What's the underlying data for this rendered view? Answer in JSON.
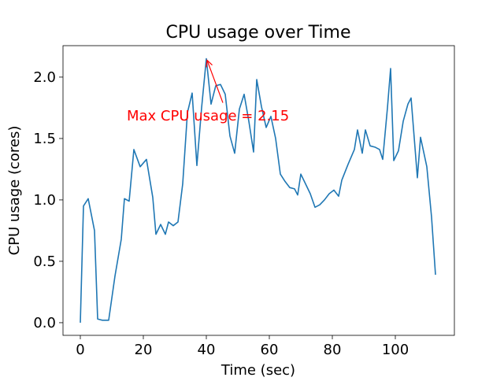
{
  "chart_data": {
    "type": "line",
    "title": "CPU usage over Time",
    "xlabel": "Time (sec)",
    "ylabel": "CPU usage (cores)",
    "annotation": "Max CPU usage = 2.15",
    "annotation_color": "#ff0000",
    "x": [
      0,
      1,
      2.5,
      4.5,
      5.5,
      7,
      9,
      11,
      13,
      14,
      15.5,
      17,
      19,
      21,
      23,
      24,
      25.5,
      27,
      28,
      29.5,
      31,
      32.5,
      34,
      35.5,
      37,
      38.5,
      40,
      41.5,
      43,
      44.5,
      46,
      47.5,
      49,
      50.5,
      52,
      53.5,
      55,
      56,
      57.5,
      59,
      60.5,
      62,
      63.5,
      65,
      66.5,
      68,
      69,
      70,
      71.5,
      73,
      74.5,
      76,
      77.5,
      79,
      80.5,
      82,
      83,
      85,
      87,
      88,
      89.5,
      90.5,
      92,
      93.5,
      95,
      96,
      97.5,
      98.5,
      99.5,
      101,
      102.5,
      104,
      105,
      107,
      108,
      110,
      111.5,
      112.75
    ],
    "series": [
      {
        "name": "CPU usage",
        "color": "#1f77b4",
        "values": [
          0.0,
          0.95,
          1.01,
          0.75,
          0.03,
          0.02,
          0.02,
          0.38,
          0.68,
          1.01,
          0.99,
          1.41,
          1.27,
          1.33,
          1.02,
          0.72,
          0.8,
          0.72,
          0.82,
          0.79,
          0.82,
          1.13,
          1.71,
          1.87,
          1.28,
          1.75,
          2.15,
          1.78,
          1.93,
          1.94,
          1.86,
          1.52,
          1.38,
          1.74,
          1.86,
          1.64,
          1.39,
          1.98,
          1.76,
          1.59,
          1.68,
          1.5,
          1.21,
          1.15,
          1.1,
          1.09,
          1.04,
          1.21,
          1.13,
          1.05,
          0.94,
          0.96,
          1.0,
          1.05,
          1.08,
          1.03,
          1.16,
          1.29,
          1.41,
          1.57,
          1.38,
          1.57,
          1.44,
          1.43,
          1.41,
          1.33,
          1.75,
          2.07,
          1.32,
          1.4,
          1.64,
          1.78,
          1.83,
          1.18,
          1.51,
          1.27,
          0.86,
          0.39
        ]
      }
    ],
    "xlim": [
      -5.5,
      118.75
    ],
    "ylim": [
      -0.103,
      2.256
    ],
    "xticks": [
      0,
      20,
      40,
      60,
      80,
      100
    ],
    "yticks": [
      {
        "value": 0,
        "label": "0.0"
      },
      {
        "value": 0.5,
        "label": "0.5"
      },
      {
        "value": 1,
        "label": "1.0"
      },
      {
        "value": 1.5,
        "label": "1.5"
      },
      {
        "value": 2,
        "label": "2.0"
      }
    ],
    "grid": false
  }
}
